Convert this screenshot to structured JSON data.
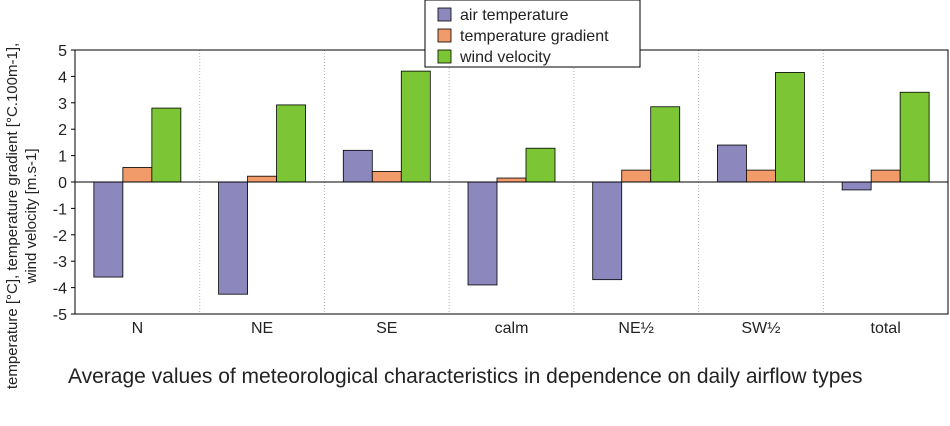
{
  "caption": "Average values of meteorological characteristics in dependence on daily airflow types",
  "chart_data": {
    "type": "bar",
    "title": "",
    "xlabel": "",
    "ylabel": {
      "line1": "temperature [°C], temperature gradient [°C.100m-1],",
      "line2": "wind velocity [m.s-1]"
    },
    "ylim": [
      -5,
      5
    ],
    "yticks": [
      "5",
      "4",
      "3",
      "2",
      "1",
      "0",
      "-1",
      "-2",
      "-3",
      "-4",
      "-5"
    ],
    "grid": "x-dotted",
    "legend_position": "top-center",
    "categories": [
      "N",
      "NE",
      "SE",
      "calm",
      "NE½",
      "SW½",
      "total"
    ],
    "series": [
      {
        "name": "air temperature",
        "color": "#8c88be",
        "values": [
          -3.6,
          -4.25,
          1.2,
          -3.9,
          -3.7,
          1.4,
          -0.3
        ]
      },
      {
        "name": "temperature gradient",
        "color": "#f19a6a",
        "values": [
          0.55,
          0.22,
          0.4,
          0.15,
          0.45,
          0.45,
          0.45
        ]
      },
      {
        "name": "wind velocity",
        "color": "#7cc636",
        "values": [
          2.8,
          2.92,
          4.2,
          1.28,
          2.85,
          4.15,
          3.4
        ]
      }
    ]
  }
}
